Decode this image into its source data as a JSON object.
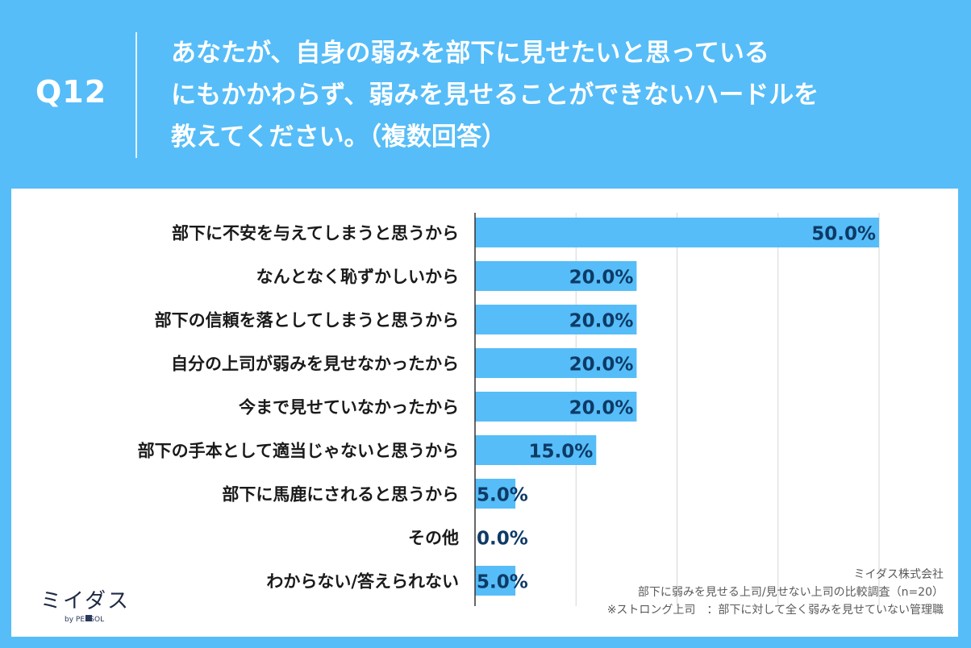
{
  "header": {
    "question_number": "Q12",
    "question_lines": [
      "あなたが、自身の弱みを部下に見せたいと思っている",
      "にもかかわらず、弱みを見せることができないハードルを",
      "教えてください。（複数回答）"
    ]
  },
  "chart_data": {
    "type": "bar",
    "orientation": "horizontal",
    "categories": [
      "部下に不安を与えてしまうと思うから",
      "なんとなく恥ずかしいから",
      "部下の信頼を落としてしまうと思うから",
      "自分の上司が弱みを見せなかったから",
      "今まで見せていなかったから",
      "部下の手本として適当じゃないと思うから",
      "部下に馬鹿にされると思うから",
      "その他",
      "わからない/答えられない"
    ],
    "values": [
      50.0,
      20.0,
      20.0,
      20.0,
      20.0,
      15.0,
      5.0,
      0.0,
      5.0
    ],
    "value_labels": [
      "50.0%",
      "20.0%",
      "20.0%",
      "20.0%",
      "20.0%",
      "15.0%",
      "5.0%",
      "0.0%",
      "5.0%"
    ],
    "xlim": [
      0,
      50
    ],
    "grid": true,
    "bar_color": "#56bdf8",
    "label_color": "#0e3a66"
  },
  "branding": {
    "logo_text": "ミイダス",
    "sub_text": "by PERSOL"
  },
  "notes": {
    "company": "ミイダス株式会社",
    "survey": "部下に弱みを見せる上司/見せない上司の比較調査（n=20）",
    "definition": "※ストロング上司　：部下に対して全く弱みを見せていない管理職"
  },
  "colors": {
    "background": "#56bdf8",
    "panel": "#ffffff",
    "text": "#1a1a1a"
  }
}
